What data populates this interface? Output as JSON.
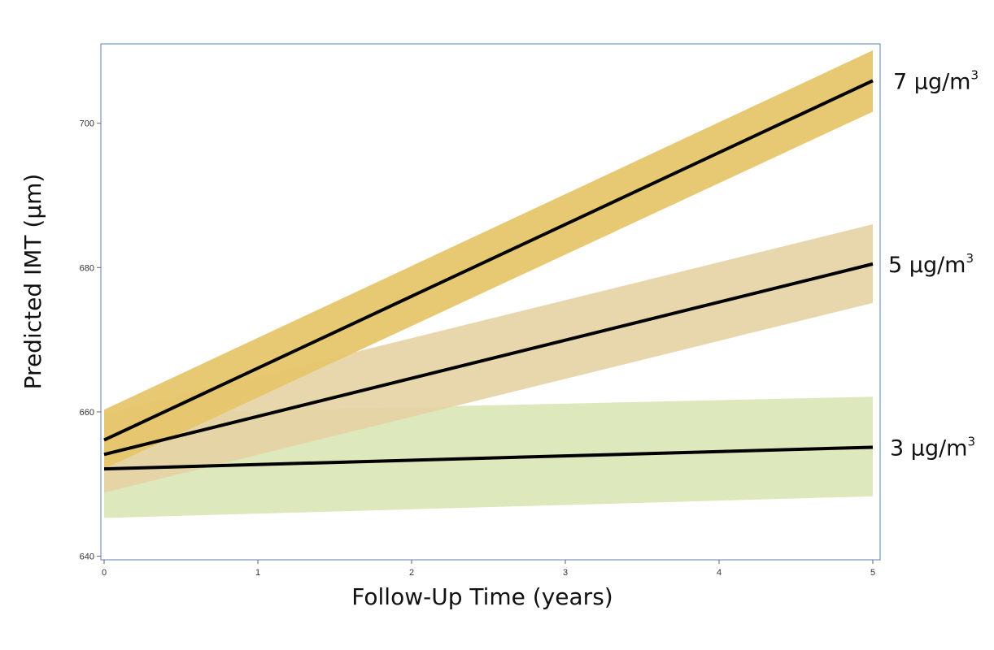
{
  "chart_data": {
    "type": "line",
    "xlabel": "Follow-Up Time (years)",
    "ylabel": "Predicted IMT (µm)",
    "xlim": [
      0,
      5
    ],
    "ylim": [
      639.5,
      711
    ],
    "xticks": [
      0,
      1,
      2,
      3,
      4,
      5
    ],
    "yticks": [
      640,
      660,
      680,
      700
    ],
    "grid": false,
    "legend": "right-end labels",
    "series": [
      {
        "name": "3 µg/m",
        "name_sup": "3",
        "x": [
          0,
          5
        ],
        "values": [
          652.1,
          655.1
        ],
        "ci_lower": [
          645.3,
          648.3
        ],
        "ci_upper": [
          659.7,
          662.1
        ],
        "band_color": "#d9e5b5",
        "line_color": "#000000"
      },
      {
        "name": "5 µg/m",
        "name_sup": "3",
        "x": [
          0,
          5
        ],
        "values": [
          654.1,
          680.5
        ],
        "ci_lower": [
          648.8,
          675.1
        ],
        "ci_upper": [
          659.7,
          686.0
        ],
        "band_color": "#e6d3a3",
        "line_color": "#000000"
      },
      {
        "name": "7 µg/m",
        "name_sup": "3",
        "x": [
          0,
          5
        ],
        "values": [
          656.1,
          705.9
        ],
        "ci_lower": [
          652.1,
          701.6
        ],
        "ci_upper": [
          660.3,
          710.1
        ],
        "band_color": "#e6c66b",
        "line_color": "#000000"
      }
    ],
    "colors": {
      "frame": "#5b7fb5",
      "axis": "#666666"
    }
  }
}
